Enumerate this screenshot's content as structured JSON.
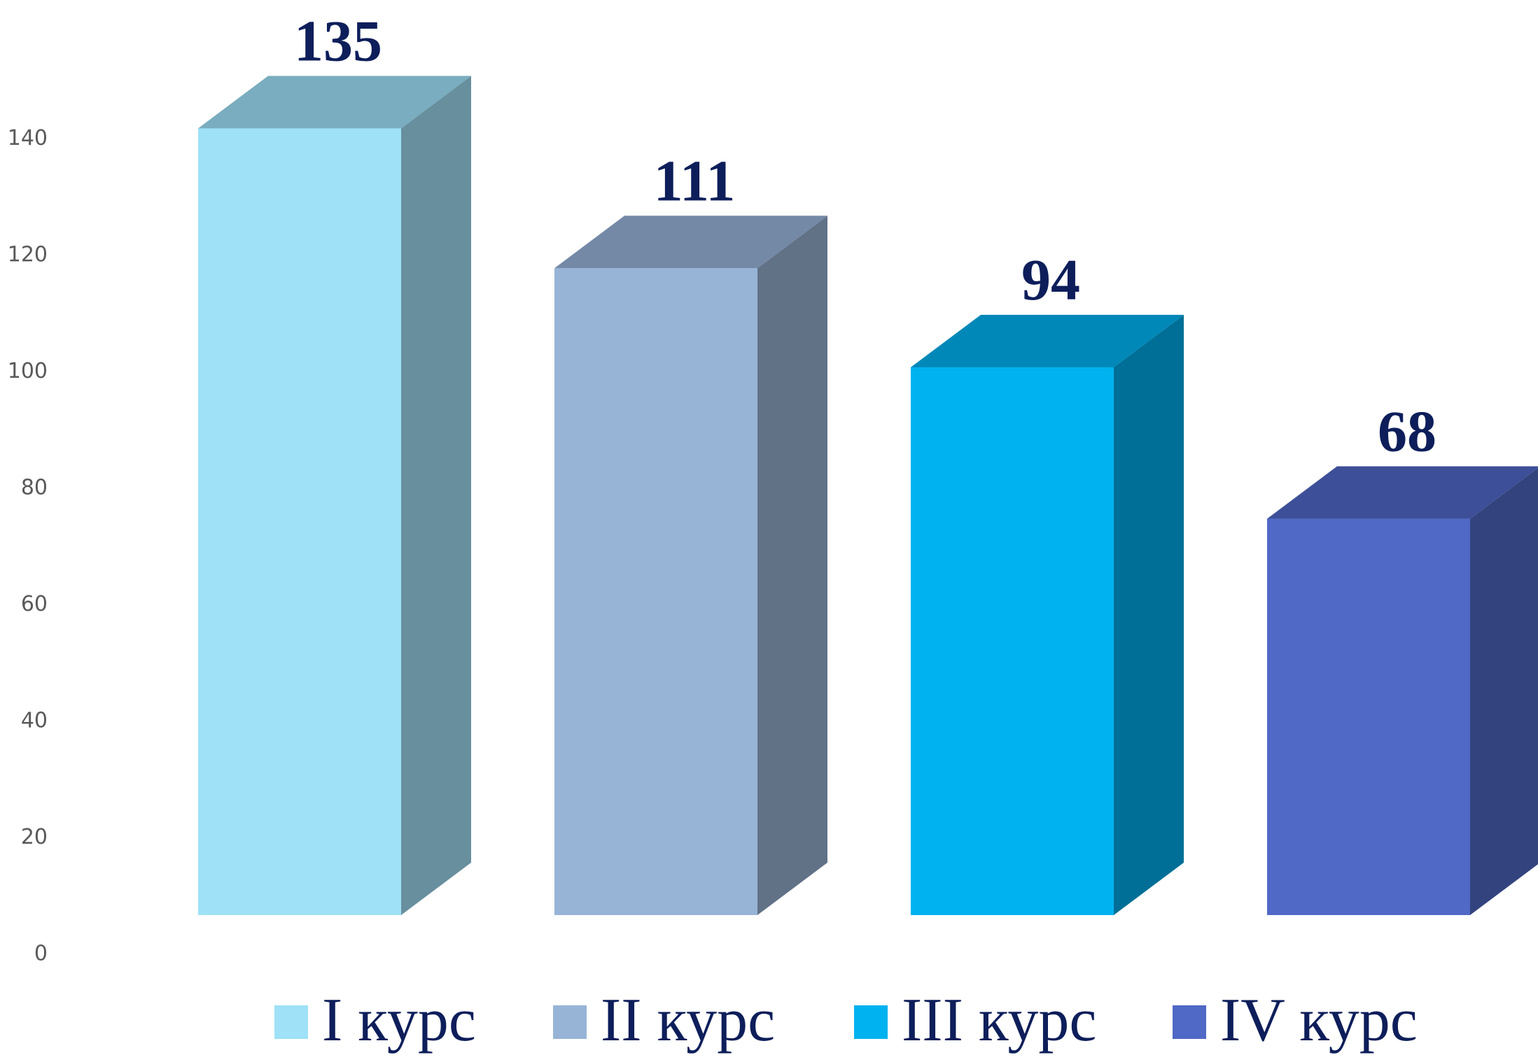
{
  "chart_data": {
    "type": "bar",
    "style": "3d-column",
    "categories": [
      "I курс",
      "II курс",
      "III курс",
      "IV курс"
    ],
    "values": [
      135,
      111,
      94,
      68
    ],
    "data_labels": [
      "135",
      "111",
      "94",
      "68"
    ],
    "ylim": [
      0,
      140
    ],
    "yticks": [
      "0",
      "20",
      "40",
      "60",
      "80",
      "100",
      "120",
      "140"
    ],
    "grid": false,
    "legend": {
      "placement": "bottom",
      "entries": [
        "I курс",
        "II курс",
        "III курс",
        "IV курс"
      ]
    },
    "colors": [
      {
        "front": "#9fe1f7",
        "top": "#79adbf",
        "side": "#678f9e"
      },
      {
        "front": "#97b4d7",
        "top": "#7489a6",
        "side": "#617287"
      },
      {
        "front": "#00b2ef",
        "top": "#0088b8",
        "side": "#006f97"
      },
      {
        "front": "#5068c6",
        "top": "#3d4f98",
        "side": "#33437e"
      }
    ],
    "label_color": "#0d1e5a",
    "axis_text_color": "#595959"
  }
}
